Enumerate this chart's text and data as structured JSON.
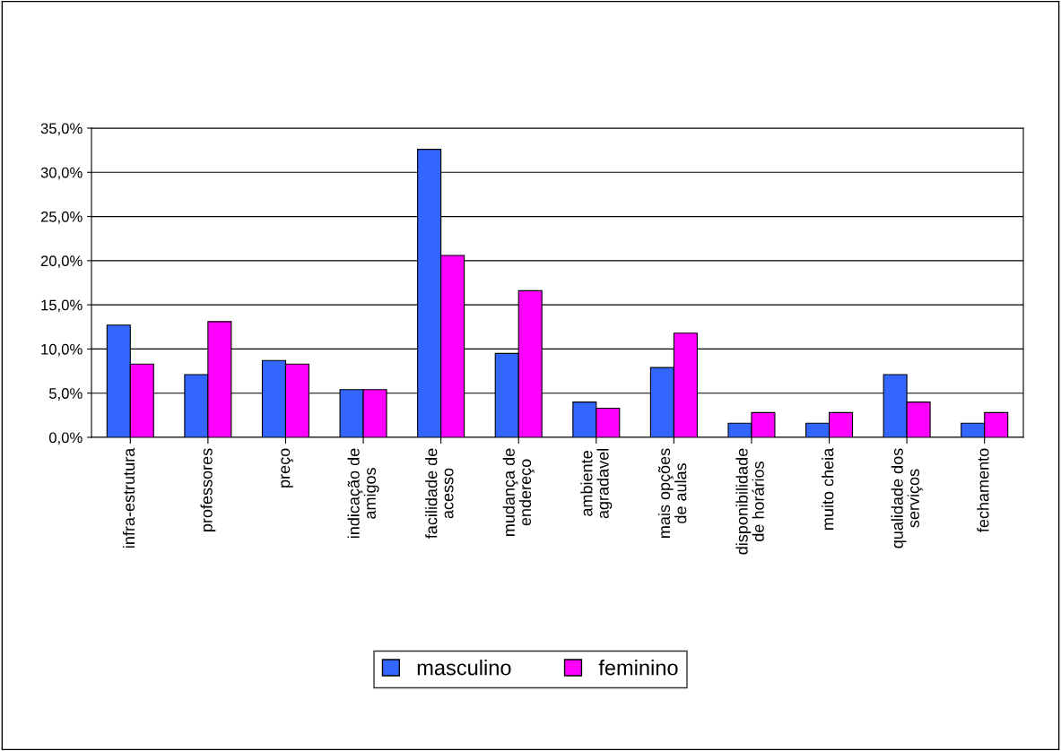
{
  "chart_data": {
    "type": "bar",
    "categories": [
      "infra-estrutura",
      "professores",
      "preço",
      "indicação de\namigos",
      "facilidade de\nacesso",
      "mudança de\nendereço",
      "ambiente\nagradavel",
      "mais opções\nde aulas",
      "disponibilidade\nde horários",
      "muito cheia",
      "qualidade dos\nserviços",
      "fechamento"
    ],
    "series": [
      {
        "name": "masculino",
        "color": "#3366ff",
        "values": [
          12.7,
          7.1,
          8.7,
          5.4,
          32.6,
          9.5,
          4.0,
          7.9,
          1.6,
          1.6,
          7.1,
          1.6
        ]
      },
      {
        "name": "feminino",
        "color": "#ff00ff",
        "values": [
          8.3,
          13.1,
          8.3,
          5.4,
          20.6,
          16.6,
          3.3,
          11.8,
          2.8,
          2.8,
          4.0,
          2.8
        ]
      }
    ],
    "ylim": [
      0,
      35
    ],
    "yticks": [
      {
        "value": 0,
        "label": "0,0%"
      },
      {
        "value": 5,
        "label": "5,0%"
      },
      {
        "value": 10,
        "label": "10,0%"
      },
      {
        "value": 15,
        "label": "15,0%"
      },
      {
        "value": 20,
        "label": "20,0%"
      },
      {
        "value": 25,
        "label": "25,0%"
      },
      {
        "value": 30,
        "label": "30,0%"
      },
      {
        "value": 35,
        "label": "35,0%"
      }
    ],
    "grid": "y",
    "legend": "bottom"
  }
}
